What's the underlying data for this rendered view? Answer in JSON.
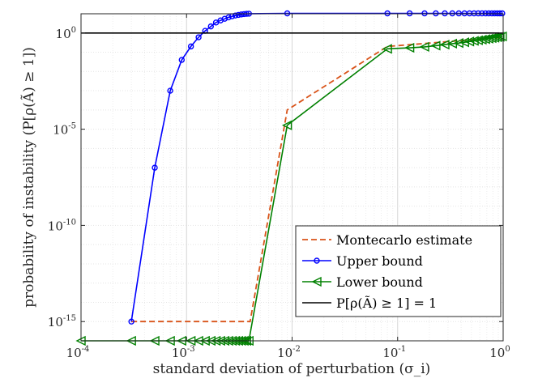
{
  "chart_data": {
    "type": "line",
    "title": "",
    "xlabel": "standard deviation of perturbation (σ_i)",
    "ylabel": "probability of instability (P[ρ(Ã) ≥ 1])",
    "xscale": "log",
    "yscale": "log",
    "xlim": [
      0.0001,
      1
    ],
    "ylim": [
      1e-16,
      10.0
    ],
    "grid": true,
    "legend_position": "bottom-right",
    "x_ticks": [
      {
        "base": "10",
        "exp": "-4"
      },
      {
        "base": "10",
        "exp": "-3"
      },
      {
        "base": "10",
        "exp": "-2"
      },
      {
        "base": "10",
        "exp": "-1"
      },
      {
        "base": "10",
        "exp": "0"
      }
    ],
    "y_ticks": [
      {
        "base": "10",
        "exp": "-15"
      },
      {
        "base": "10",
        "exp": "-10"
      },
      {
        "base": "10",
        "exp": "-5"
      },
      {
        "base": "10",
        "exp": "0"
      }
    ],
    "series": [
      {
        "name": "Montecarlo estimate",
        "color": "#D95319",
        "style": "dashed",
        "marker": "none",
        "x": [
          0.0003,
          0.004,
          0.009,
          0.08,
          1.0
        ],
        "y": [
          1e-15,
          1e-15,
          0.0001,
          0.2,
          0.6
        ]
      },
      {
        "name": "Upper bound",
        "color": "#0000FF",
        "style": "solid",
        "marker": "circle",
        "x": [
          0.0003,
          0.0005,
          0.0007,
          0.0009,
          0.0011,
          0.0013,
          0.0015,
          0.0017,
          0.0019,
          0.0021,
          0.0023,
          0.0025,
          0.0027,
          0.0029,
          0.0031,
          0.0033,
          0.0035,
          0.0037,
          0.0039,
          0.009,
          0.08,
          0.13,
          0.18,
          0.23,
          0.28,
          0.33,
          0.38,
          0.43,
          0.48,
          0.53,
          0.58,
          0.63,
          0.68,
          0.73,
          0.78,
          0.83,
          0.88,
          0.93,
          0.98
        ],
        "y": [
          1e-15,
          1e-07,
          0.001,
          0.04,
          0.2,
          0.6,
          1.3,
          2.2,
          3.5,
          4.5,
          5.5,
          6.5,
          7.4,
          8.1,
          8.7,
          9.2,
          9.6,
          9.9,
          10.1,
          10.5,
          10.5,
          10.5,
          10.5,
          10.5,
          10.5,
          10.5,
          10.5,
          10.5,
          10.5,
          10.5,
          10.5,
          10.5,
          10.5,
          10.5,
          10.5,
          10.5,
          10.5,
          10.5,
          10.5
        ]
      },
      {
        "name": "Lower bound",
        "color": "#008000",
        "style": "solid",
        "marker": "triangle-left",
        "x": [
          0.0001,
          0.0003,
          0.0005,
          0.0007,
          0.0009,
          0.0011,
          0.0013,
          0.0015,
          0.0017,
          0.0019,
          0.0021,
          0.0023,
          0.0025,
          0.0027,
          0.0029,
          0.0031,
          0.0033,
          0.0035,
          0.0037,
          0.0039,
          0.009,
          0.08,
          0.13,
          0.18,
          0.23,
          0.28,
          0.33,
          0.38,
          0.43,
          0.48,
          0.53,
          0.58,
          0.63,
          0.68,
          0.73,
          0.78,
          0.83,
          0.88,
          0.93,
          0.98
        ],
        "y": [
          1e-16,
          1e-16,
          1e-16,
          1e-16,
          1e-16,
          1e-16,
          1e-16,
          1e-16,
          1e-16,
          1e-16,
          1e-16,
          1e-16,
          1e-16,
          1e-16,
          1e-16,
          1e-16,
          1e-16,
          1e-16,
          1e-16,
          1e-16,
          1.6e-05,
          0.15,
          0.17,
          0.19,
          0.22,
          0.25,
          0.28,
          0.3,
          0.33,
          0.36,
          0.39,
          0.42,
          0.45,
          0.48,
          0.51,
          0.54,
          0.57,
          0.6,
          0.63,
          0.66
        ]
      },
      {
        "name": "P[ρ(Ã) ≥ 1] = 1",
        "color": "#000000",
        "style": "solid",
        "marker": "none",
        "x": [
          0.0001,
          1
        ],
        "y": [
          1,
          1
        ]
      }
    ]
  }
}
